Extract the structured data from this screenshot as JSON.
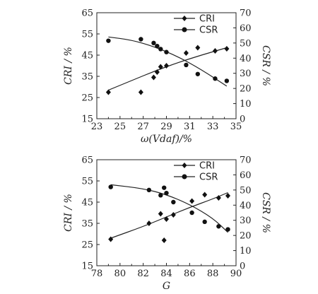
{
  "chart_data": [
    {
      "type": "scatter",
      "xlabel": "ω(Vdaf)/%",
      "ylabel_left": "CRI / %",
      "ylabel_right": "CSR / %",
      "xlim": [
        23,
        35
      ],
      "ylim_left": [
        15,
        65
      ],
      "ylim_right": [
        0,
        70
      ],
      "x_ticks": [
        "23",
        "25",
        "27",
        "29",
        "31",
        "33",
        "35"
      ],
      "y_ticks_left": [
        "15",
        "25",
        "35",
        "45",
        "55",
        "65"
      ],
      "y_ticks_right": [
        "0",
        "10",
        "20",
        "30",
        "40",
        "50",
        "60",
        "70"
      ],
      "legend": {
        "position": "top-right",
        "entries": [
          "CRI",
          "CSR"
        ]
      },
      "series": [
        {
          "name": "CRI",
          "marker": "diamond",
          "axis": "left",
          "points": [
            [
              24.0,
              27.5
            ],
            [
              26.8,
              27.5
            ],
            [
              27.9,
              34.5
            ],
            [
              28.2,
              37.0
            ],
            [
              28.5,
              39.5
            ],
            [
              29.0,
              40.0
            ],
            [
              30.7,
              46.0
            ],
            [
              31.7,
              48.5
            ],
            [
              33.2,
              47.0
            ],
            [
              34.2,
              48.0
            ]
          ],
          "fit": [
            [
              24.0,
              28.5
            ],
            [
              26.0,
              33.0
            ],
            [
              28.0,
              37.5
            ],
            [
              30.0,
              41.5
            ],
            [
              32.0,
              45.0
            ],
            [
              34.2,
              48.5
            ]
          ]
        },
        {
          "name": "CSR",
          "marker": "circle",
          "axis": "right",
          "points": [
            [
              24.0,
              51.5
            ],
            [
              26.8,
              52.5
            ],
            [
              27.9,
              50.0
            ],
            [
              28.2,
              48.0
            ],
            [
              28.5,
              46.0
            ],
            [
              29.0,
              44.0
            ],
            [
              30.7,
              35.5
            ],
            [
              31.7,
              29.5
            ],
            [
              33.2,
              26.5
            ],
            [
              34.2,
              25.0
            ]
          ],
          "fit": [
            [
              24.0,
              54.0
            ],
            [
              26.0,
              52.0
            ],
            [
              28.0,
              47.5
            ],
            [
              30.0,
              41.0
            ],
            [
              32.0,
              32.5
            ],
            [
              34.2,
              21.5
            ]
          ]
        }
      ]
    },
    {
      "type": "scatter",
      "xlabel": "G",
      "ylabel_left": "CRI / %",
      "ylabel_right": "CSR / %",
      "xlim": [
        78,
        90
      ],
      "ylim_left": [
        15,
        65
      ],
      "ylim_right": [
        0,
        70
      ],
      "x_ticks": [
        "78",
        "80",
        "82",
        "84",
        "86",
        "88",
        "90"
      ],
      "y_ticks_left": [
        "15",
        "25",
        "35",
        "45",
        "55",
        "65"
      ],
      "y_ticks_right": [
        "0",
        "10",
        "20",
        "30",
        "40",
        "50",
        "60",
        "70"
      ],
      "legend": {
        "position": "top-right",
        "entries": [
          "CRI",
          "CSR"
        ]
      },
      "series": [
        {
          "name": "CRI",
          "marker": "diamond",
          "axis": "left",
          "points": [
            [
              79.2,
              27.5
            ],
            [
              82.5,
              35.0
            ],
            [
              83.5,
              39.5
            ],
            [
              83.8,
              27.0
            ],
            [
              84.0,
              37.0
            ],
            [
              84.6,
              39.0
            ],
            [
              86.2,
              45.5
            ],
            [
              87.3,
              48.5
            ],
            [
              88.5,
              47.0
            ],
            [
              89.3,
              48.0
            ]
          ],
          "fit": [
            [
              79.2,
              28.0
            ],
            [
              82.0,
              33.5
            ],
            [
              84.0,
              38.0
            ],
            [
              86.0,
              42.5
            ],
            [
              88.0,
              46.5
            ],
            [
              89.3,
              49.5
            ]
          ]
        },
        {
          "name": "CSR",
          "marker": "circle",
          "axis": "right",
          "points": [
            [
              79.2,
              52.0
            ],
            [
              82.5,
              50.0
            ],
            [
              83.5,
              46.5
            ],
            [
              83.8,
              51.5
            ],
            [
              84.0,
              48.0
            ],
            [
              84.6,
              42.0
            ],
            [
              86.2,
              35.0
            ],
            [
              87.3,
              29.0
            ],
            [
              88.5,
              26.0
            ],
            [
              89.3,
              24.0
            ]
          ],
          "fit": [
            [
              79.2,
              53.5
            ],
            [
              82.0,
              51.0
            ],
            [
              84.0,
              47.0
            ],
            [
              86.0,
              40.5
            ],
            [
              88.0,
              31.5
            ],
            [
              89.3,
              22.0
            ]
          ]
        }
      ]
    }
  ]
}
